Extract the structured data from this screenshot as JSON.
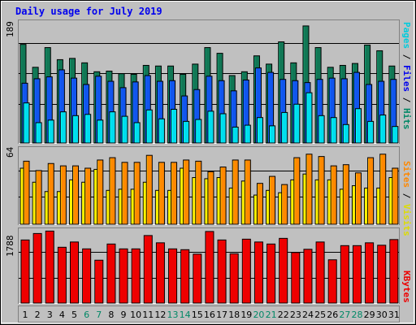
{
  "title": "Daily usage for July 2019",
  "colors": {
    "title": "#0000ee",
    "weekday": "#000000",
    "weekend": "#008866",
    "pages": "#00ddee",
    "files": "#1155ee",
    "hits": "#117755",
    "visits": "#ffee00",
    "sites": "#ff8800",
    "kbytes": "#ee0000"
  },
  "legends": {
    "top": [
      {
        "text": "Pages",
        "color": "#00ccdd"
      },
      {
        "text": " / ",
        "color": "#000000"
      },
      {
        "text": "Files",
        "color": "#0000ee"
      },
      {
        "text": " / ",
        "color": "#000000"
      },
      {
        "text": "Hits",
        "color": "#008866"
      }
    ],
    "middle": [
      {
        "text": "Sites",
        "color": "#ff8800"
      },
      {
        "text": " / ",
        "color": "#000000"
      },
      {
        "text": "Visits",
        "color": "#dddd00"
      }
    ],
    "bottom": [
      {
        "text": "KBytes",
        "color": "#ee0000"
      }
    ]
  },
  "chart_data": [
    {
      "type": "bar",
      "panel": "hits-files-pages",
      "ymax_label": "189",
      "ylim": [
        0,
        189
      ],
      "categories": [
        "1",
        "2",
        "3",
        "4",
        "5",
        "6",
        "7",
        "8",
        "9",
        "10",
        "11",
        "12",
        "13",
        "14",
        "15",
        "16",
        "17",
        "18",
        "19",
        "20",
        "21",
        "22",
        "23",
        "24",
        "25",
        "26",
        "27",
        "28",
        "29",
        "30",
        "31"
      ],
      "weekend_days": [
        "6",
        "7",
        "13",
        "14",
        "20",
        "21",
        "27",
        "28"
      ],
      "series": [
        {
          "name": "Hits",
          "values": [
            155,
            119,
            150,
            131,
            133,
            126,
            112,
            113,
            109,
            108,
            122,
            121,
            121,
            108,
            124,
            150,
            141,
            106,
            112,
            137,
            124,
            159,
            126,
            184,
            150,
            119,
            122,
            125,
            154,
            145,
            121
          ]
        },
        {
          "name": "Files",
          "values": [
            94,
            101,
            104,
            115,
            102,
            92,
            105,
            97,
            87,
            96,
            106,
            97,
            98,
            74,
            84,
            105,
            98,
            82,
            99,
            118,
            111,
            100,
            98,
            95,
            100,
            102,
            101,
            111,
            92,
            97,
            100
          ]
        },
        {
          "name": "Pages",
          "values": [
            63,
            32,
            36,
            49,
            43,
            45,
            36,
            49,
            42,
            32,
            52,
            38,
            53,
            34,
            37,
            50,
            46,
            25,
            28,
            40,
            27,
            48,
            61,
            79,
            43,
            40,
            29,
            54,
            34,
            44,
            26
          ]
        }
      ]
    },
    {
      "type": "bar",
      "panel": "sites-visits",
      "ymax_label": "64",
      "ylim": [
        0,
        64
      ],
      "categories": [
        "1",
        "2",
        "3",
        "4",
        "5",
        "6",
        "7",
        "8",
        "9",
        "10",
        "11",
        "12",
        "13",
        "14",
        "15",
        "16",
        "17",
        "18",
        "19",
        "20",
        "21",
        "22",
        "23",
        "24",
        "25",
        "26",
        "27",
        "28",
        "29",
        "30",
        "31"
      ],
      "series": [
        {
          "name": "Sites",
          "values": [
            54,
            46,
            52,
            50,
            50,
            48,
            55,
            57,
            53,
            53,
            59,
            53,
            53,
            55,
            54,
            45,
            49,
            55,
            55,
            35,
            41,
            34,
            57,
            60,
            58,
            50,
            51,
            44,
            57,
            60,
            48
          ]
        },
        {
          "name": "Visits",
          "values": [
            48,
            36,
            28,
            28,
            38,
            36,
            47,
            29,
            30,
            30,
            36,
            29,
            29,
            48,
            40,
            39,
            40,
            31,
            37,
            25,
            29,
            27,
            38,
            43,
            38,
            38,
            30,
            33,
            31,
            31,
            40
          ]
        }
      ]
    },
    {
      "type": "bar",
      "panel": "kbytes",
      "ymax_label": "1788",
      "ylim": [
        0,
        1788
      ],
      "categories": [
        "1",
        "2",
        "3",
        "4",
        "5",
        "6",
        "7",
        "8",
        "9",
        "10",
        "11",
        "12",
        "13",
        "14",
        "15",
        "16",
        "17",
        "18",
        "19",
        "20",
        "21",
        "22",
        "23",
        "24",
        "25",
        "26",
        "27",
        "28",
        "29",
        "30",
        "31"
      ],
      "series": [
        {
          "name": "KBytes",
          "values": [
            1560,
            1720,
            1780,
            1380,
            1510,
            1340,
            1060,
            1460,
            1340,
            1340,
            1670,
            1490,
            1340,
            1320,
            1210,
            1770,
            1560,
            1220,
            1580,
            1510,
            1460,
            1600,
            1250,
            1330,
            1510,
            1070,
            1420,
            1420,
            1490,
            1430,
            1570
          ]
        }
      ]
    }
  ]
}
